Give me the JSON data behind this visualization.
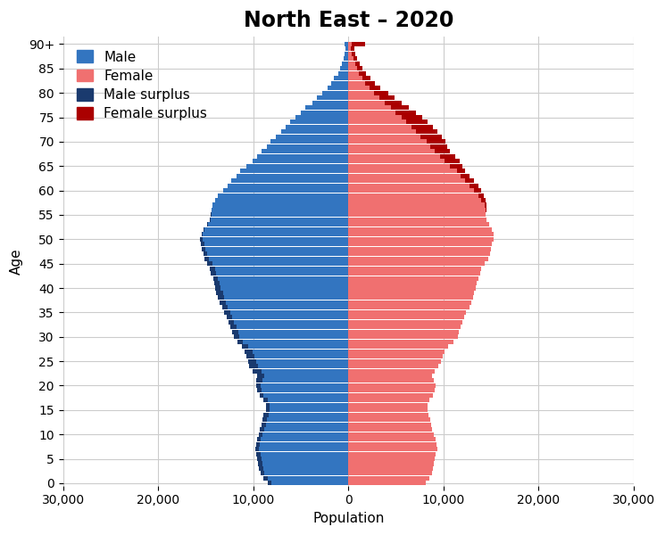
{
  "title": "North East – 2020",
  "xlabel": "Population",
  "ylabel": "Age",
  "xlim": [
    -30000,
    30000
  ],
  "xticks": [
    -30000,
    -20000,
    -10000,
    0,
    10000,
    20000,
    30000
  ],
  "xticklabels": [
    "30,000",
    "20,000",
    "10,000",
    "0",
    "10,000",
    "20,000",
    "30,000"
  ],
  "yticks": [
    0,
    5,
    10,
    15,
    20,
    25,
    30,
    35,
    40,
    45,
    50,
    55,
    60,
    65,
    70,
    75,
    80,
    85,
    90
  ],
  "yticklabels": [
    "0",
    "5",
    "10",
    "15",
    "20",
    "25",
    "30",
    "35",
    "40",
    "45",
    "50",
    "55",
    "60",
    "65",
    "70",
    "75",
    "80",
    "85",
    "90+"
  ],
  "male_color": "#3375c0",
  "female_color": "#f07070",
  "male_surplus_color": "#1a3a6e",
  "female_surplus_color": "#aa0000",
  "background_color": "#ffffff",
  "grid_color": "#cccccc",
  "ages": [
    0,
    1,
    2,
    3,
    4,
    5,
    6,
    7,
    8,
    9,
    10,
    11,
    12,
    13,
    14,
    15,
    16,
    17,
    18,
    19,
    20,
    21,
    22,
    23,
    24,
    25,
    26,
    27,
    28,
    29,
    30,
    31,
    32,
    33,
    34,
    35,
    36,
    37,
    38,
    39,
    40,
    41,
    42,
    43,
    44,
    45,
    46,
    47,
    48,
    49,
    50,
    51,
    52,
    53,
    54,
    55,
    56,
    57,
    58,
    59,
    60,
    61,
    62,
    63,
    64,
    65,
    66,
    67,
    68,
    69,
    70,
    71,
    72,
    73,
    74,
    75,
    76,
    77,
    78,
    79,
    80,
    81,
    82,
    83,
    84,
    85,
    86,
    87,
    88,
    89,
    90
  ],
  "male": [
    8500,
    8900,
    9200,
    9400,
    9500,
    9600,
    9700,
    9800,
    9700,
    9600,
    9400,
    9300,
    9100,
    9000,
    8900,
    8700,
    8700,
    8900,
    9300,
    9600,
    9700,
    9700,
    9600,
    10100,
    10400,
    10500,
    10700,
    10900,
    11200,
    11700,
    12000,
    12200,
    12400,
    12600,
    12800,
    13100,
    13300,
    13500,
    13700,
    13900,
    14000,
    14100,
    14200,
    14500,
    14600,
    14900,
    15100,
    15200,
    15400,
    15500,
    15600,
    15400,
    15200,
    14900,
    14600,
    14500,
    14400,
    14300,
    14000,
    13700,
    13200,
    12700,
    12300,
    11800,
    11400,
    10700,
    10100,
    9600,
    9100,
    8600,
    8200,
    7600,
    7100,
    6600,
    6100,
    5600,
    5000,
    4500,
    3800,
    3300,
    2700,
    2200,
    1800,
    1500,
    1100,
    900,
    700,
    500,
    400,
    300,
    400
  ],
  "female": [
    8100,
    8500,
    8800,
    8900,
    9000,
    9100,
    9200,
    9400,
    9300,
    9200,
    9000,
    8800,
    8700,
    8600,
    8400,
    8300,
    8300,
    8500,
    8900,
    9100,
    9200,
    9000,
    8800,
    9100,
    9500,
    9700,
    9900,
    10100,
    10500,
    11100,
    11500,
    11600,
    11800,
    12000,
    12200,
    12400,
    12700,
    12900,
    13100,
    13200,
    13400,
    13500,
    13700,
    13900,
    14000,
    14300,
    14700,
    14900,
    15000,
    15100,
    15300,
    15300,
    15100,
    14800,
    14500,
    14400,
    14500,
    14500,
    14400,
    14200,
    14000,
    13700,
    13200,
    12700,
    12300,
    12000,
    11700,
    11200,
    10700,
    10400,
    10200,
    9800,
    9400,
    8900,
    8300,
    7800,
    7100,
    6400,
    5600,
    4900,
    4200,
    3400,
    2800,
    2300,
    1900,
    1500,
    1200,
    900,
    700,
    600,
    1800
  ],
  "bar_height": 0.92,
  "title_fontsize": 17,
  "axis_fontsize": 11,
  "tick_fontsize": 10,
  "legend_fontsize": 11
}
